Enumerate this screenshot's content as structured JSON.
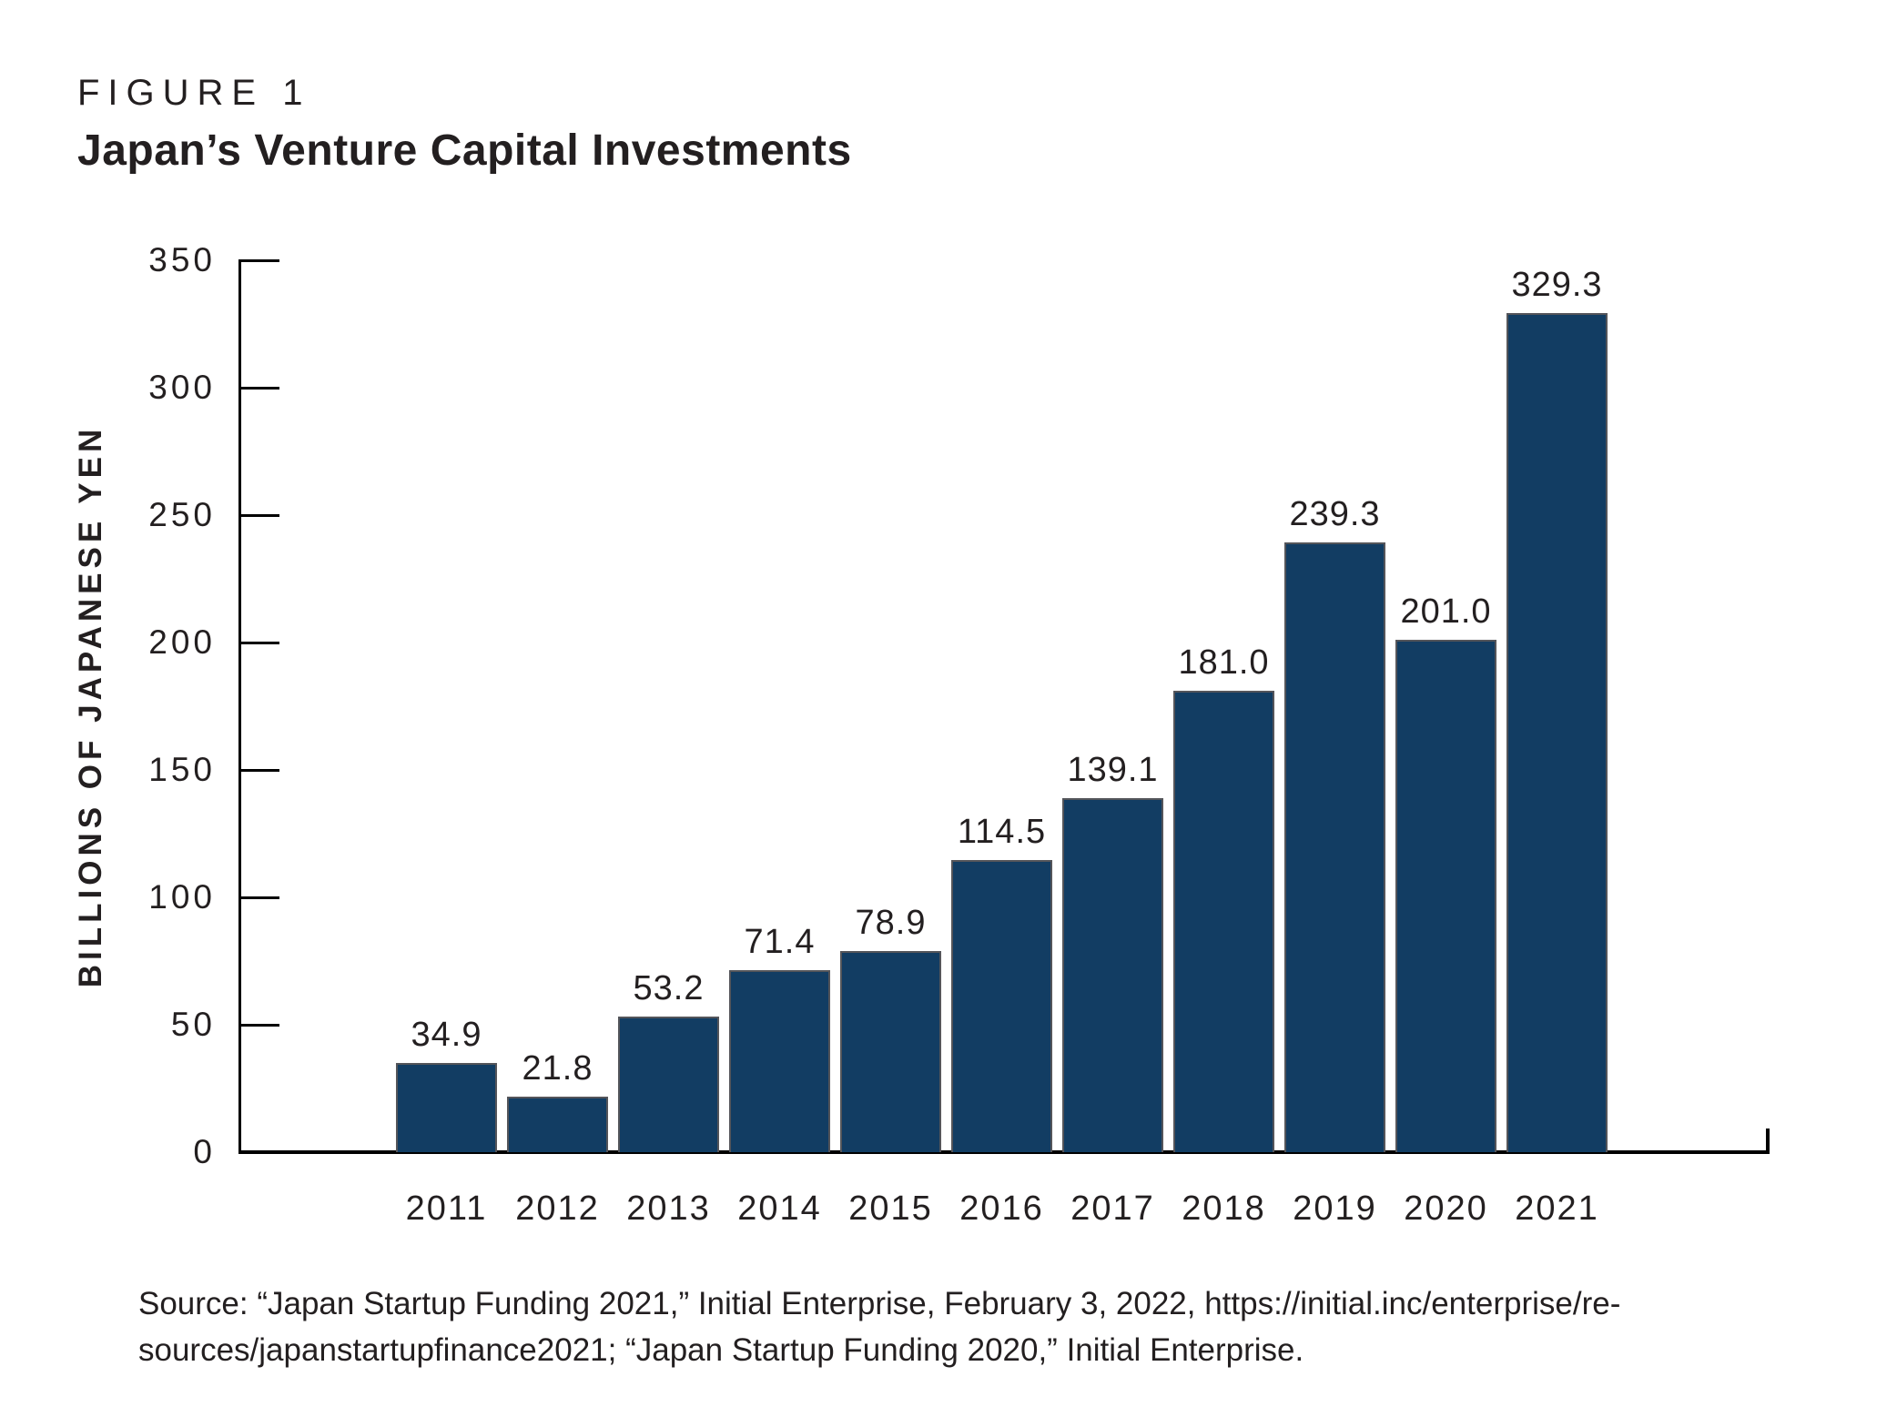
{
  "figure_label": "FIGURE 1",
  "title": "Japan’s Venture Capital Investments",
  "source_lines": [
    "Source: “Japan Startup Funding 2021,” Initial Enterprise, February 3, 2022, https://initial.inc/enterprise/re-",
    "sources/japanstartupfinance2021; “Japan Startup Funding 2020,” Initial Enterprise."
  ],
  "colors": {
    "bar": "#123d63",
    "bar_stroke": "#54555a",
    "axis": "#000000",
    "text": "#231f20"
  },
  "chart_data": {
    "type": "bar",
    "title": "Japan’s Venture Capital Investments",
    "categories": [
      "2011",
      "2012",
      "2013",
      "2014",
      "2015",
      "2016",
      "2017",
      "2018",
      "2019",
      "2020",
      "2021"
    ],
    "values": [
      34.9,
      21.8,
      53.2,
      71.4,
      78.9,
      114.5,
      139.1,
      181.0,
      239.3,
      201.0,
      329.3
    ],
    "value_labels": [
      "34.9",
      "21.8",
      "53.2",
      "71.4",
      "78.9",
      "114.5",
      "139.1",
      "181.0",
      "239.3",
      "201.0",
      "329.3"
    ],
    "xlabel": "",
    "ylabel": "BILLIONS OF JAPANESE YEN",
    "ylim": [
      0,
      350
    ],
    "yticks": [
      0,
      50,
      100,
      150,
      200,
      250,
      300,
      350
    ],
    "grid": false,
    "legend": "none",
    "value_label_position": "above-bars",
    "bar_color": "#123d63"
  }
}
